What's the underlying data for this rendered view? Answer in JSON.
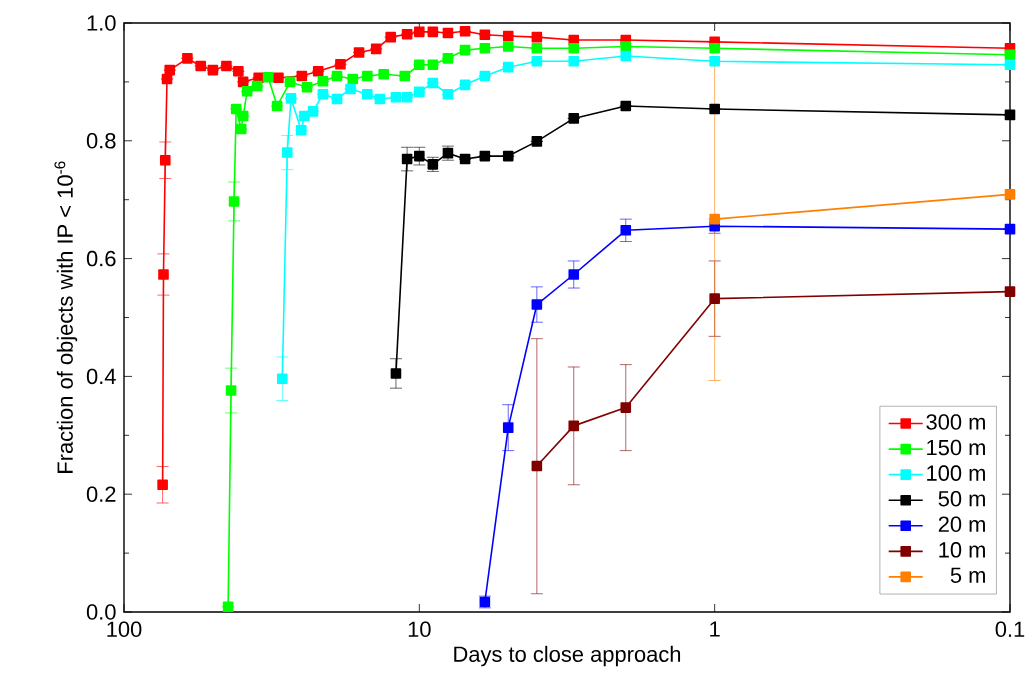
{
  "chart_data": {
    "type": "line",
    "xlabel": "Days to close approach",
    "ylabel": "Fraction of objects with IP < 10$^{-6}$",
    "log": "x",
    "xlim": [
      100,
      0.1
    ],
    "xticks": [
      100,
      10,
      1,
      0.1
    ],
    "ylim": [
      0,
      1
    ],
    "yticks": [
      {
        "value": 0,
        "label": "0.0"
      },
      {
        "value": 0.2,
        "label": "0.2"
      },
      {
        "value": 0.4,
        "label": "0.4"
      },
      {
        "value": 0.6,
        "label": "0.6"
      },
      {
        "value": 0.8,
        "label": "0.8"
      },
      {
        "value": 1,
        "label": "1.0"
      }
    ],
    "marker": "square",
    "line_style": "solid",
    "legend": "bottom right",
    "series": [
      {
        "name": "300 m",
        "color": "#ff0000",
        "x": [
          74,
          73.5,
          72.5,
          71.5,
          70,
          61,
          55,
          50,
          45,
          41,
          39.5,
          35,
          30,
          25,
          22,
          18.5,
          16,
          14,
          12.5,
          11,
          10,
          9,
          8,
          7,
          6,
          5,
          4,
          3,
          2,
          1,
          0.1
        ],
        "values": [
          0.216,
          0.573,
          0.767,
          0.905,
          0.92,
          0.94,
          0.927,
          0.92,
          0.927,
          0.918,
          0.9,
          0.907,
          0.907,
          0.91,
          0.918,
          0.93,
          0.95,
          0.956,
          0.976,
          0.981,
          0.985,
          0.985,
          0.983,
          0.986,
          0.98,
          0.978,
          0.976,
          0.971,
          0.971,
          0.968,
          0.957
        ],
        "errors": [
          0.031,
          0.035,
          0.031,
          null,
          null,
          null,
          null,
          null,
          null,
          null,
          null,
          null,
          null,
          null,
          null,
          null,
          null,
          null,
          null,
          null,
          null,
          null,
          null,
          null,
          null,
          null,
          null,
          null,
          null,
          null,
          null
        ]
      },
      {
        "name": "150 m",
        "color": "#00ff00",
        "x": [
          44.4,
          43.4,
          42.4,
          41.7,
          40.1,
          39.5,
          38.3,
          35.4,
          32.5,
          30.3,
          27.4,
          24,
          21.2,
          19,
          16.8,
          15,
          13.2,
          11.2,
          10,
          9,
          8,
          7,
          6,
          5,
          4,
          3,
          2,
          1,
          0.1
        ],
        "values": [
          0.009,
          0.376,
          0.697,
          0.854,
          0.82,
          0.842,
          0.884,
          0.893,
          0.908,
          0.859,
          0.9,
          0.891,
          0.901,
          0.91,
          0.905,
          0.91,
          0.913,
          0.91,
          0.929,
          0.929,
          0.94,
          0.954,
          0.957,
          0.96,
          0.957,
          0.957,
          0.96,
          0.957,
          0.946
        ],
        "errors": [
          null,
          0.038,
          0.033,
          null,
          null,
          null,
          null,
          null,
          null,
          null,
          null,
          null,
          null,
          null,
          null,
          null,
          null,
          null,
          null,
          null,
          null,
          null,
          null,
          null,
          null,
          null,
          null,
          null,
          null
        ]
      },
      {
        "name": "100 m",
        "color": "#00ffff",
        "x": [
          29.1,
          28,
          27.2,
          25.1,
          24.5,
          22.9,
          21.2,
          19,
          17.1,
          15,
          13.6,
          12,
          11,
          10,
          9,
          8,
          7,
          6,
          5,
          4,
          3,
          2,
          1,
          0.1
        ],
        "values": [
          0.396,
          0.78,
          0.872,
          0.818,
          0.842,
          0.85,
          0.879,
          0.871,
          0.888,
          0.879,
          0.871,
          0.874,
          0.874,
          0.883,
          0.898,
          0.879,
          0.895,
          0.91,
          0.925,
          0.935,
          0.935,
          0.944,
          0.935,
          0.929
        ],
        "errors": [
          0.037,
          0.029,
          null,
          null,
          null,
          null,
          null,
          null,
          null,
          null,
          null,
          null,
          null,
          null,
          null,
          null,
          null,
          null,
          null,
          null,
          null,
          null,
          null,
          null
        ]
      },
      {
        "name": "50 m",
        "color": "#000000",
        "x": [
          12,
          11,
          10,
          9,
          8,
          7,
          6,
          5,
          4,
          3,
          2,
          1,
          0.1
        ],
        "values": [
          0.405,
          0.769,
          0.774,
          0.76,
          0.779,
          0.769,
          0.774,
          0.774,
          0.799,
          0.838,
          0.859,
          0.854,
          0.844
        ],
        "errors": [
          0.025,
          0.02,
          0.015,
          0.012,
          0.012,
          null,
          null,
          null,
          null,
          null,
          null,
          null,
          null
        ]
      },
      {
        "name": "20 m",
        "color": "#0000ff",
        "x": [
          6,
          5,
          4,
          3,
          2,
          1,
          0.1
        ],
        "values": [
          0.017,
          0.313,
          0.522,
          0.573,
          0.648,
          0.655,
          0.65
        ],
        "errors": [
          0.01,
          0.039,
          0.03,
          0.023,
          0.019,
          0.012,
          null
        ]
      },
      {
        "name": "10 m",
        "color": "#800000",
        "x": [
          4,
          3,
          2,
          1,
          0.1
        ],
        "values": [
          0.248,
          0.316,
          0.347,
          0.532,
          0.544
        ],
        "errors": [
          [
            0.031,
            0.464
          ],
          0.1,
          0.073,
          0.064,
          null
        ]
      },
      {
        "name": "5 m",
        "color": "#ff8000",
        "x": [
          1,
          0.1
        ],
        "values": [
          0.667,
          0.709
        ],
        "errors": [
          0.274,
          null
        ]
      }
    ]
  }
}
